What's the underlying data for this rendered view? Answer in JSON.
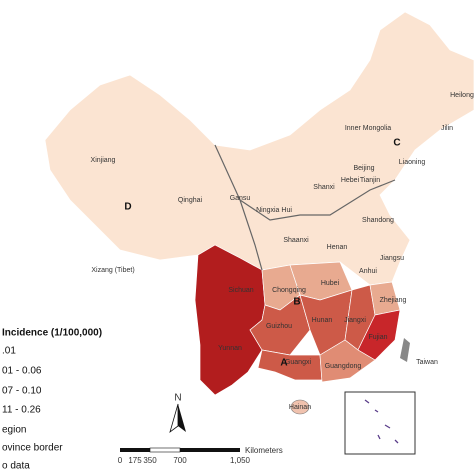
{
  "provinces": [
    "Heilong",
    "Jilin",
    "Inner Mongolia",
    "Liaoning",
    "Beijing",
    "Tianjin",
    "Hebei",
    "Shanxi",
    "Shandong",
    "Xinjiang",
    "Qinghai",
    "Gansu",
    "Ningxia Hui",
    "Shaanxi",
    "Henan",
    "Jiangsu",
    "Anhui",
    "Hubei",
    "Xizang (Tibet)",
    "Sichuan",
    "Chongqing",
    "Zhejiang",
    "Hunan",
    "Jiangxi",
    "Guizhou",
    "Yunnan",
    "Fujian",
    "Guangxi",
    "Guangdong",
    "Taiwan",
    "Hainan"
  ],
  "regions": [
    "A",
    "B",
    "C",
    "D"
  ],
  "legend": {
    "title": "Incidence (1/100,000)",
    "items": [
      ".01",
      "01 - 0.06",
      "07 - 0.10",
      "11 - 0.26",
      "egion",
      "ovince border",
      "o data"
    ]
  },
  "scale": {
    "unit": "Kilometers",
    "ticks": [
      "0",
      "175",
      "350",
      "700",
      "1,050"
    ]
  },
  "north": "N"
}
